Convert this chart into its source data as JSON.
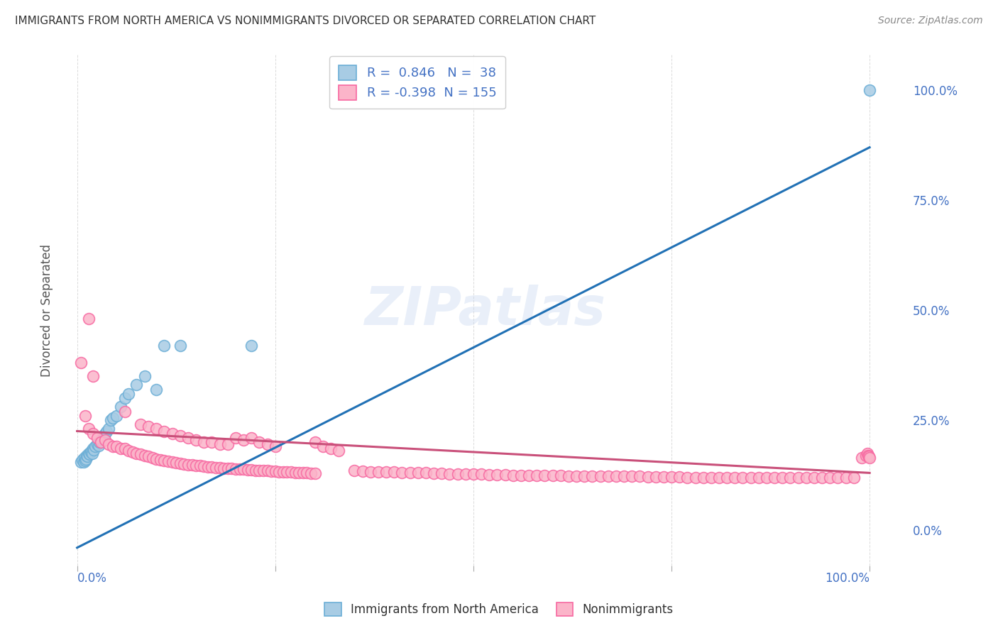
{
  "title": "IMMIGRANTS FROM NORTH AMERICA VS NONIMMIGRANTS DIVORCED OR SEPARATED CORRELATION CHART",
  "source": "Source: ZipAtlas.com",
  "ylabel": "Divorced or Separated",
  "blue_R": 0.846,
  "blue_N": 38,
  "pink_R": -0.398,
  "pink_N": 155,
  "blue_color": "#6baed6",
  "blue_fill": "#a8cce4",
  "pink_color": "#f768a1",
  "pink_fill": "#fbb4c9",
  "blue_line_color": "#2171b5",
  "pink_line_color": "#c9507a",
  "watermark": "ZIPatlas",
  "legend_label_blue": "Immigrants from North America",
  "legend_label_pink": "Nonimmigrants",
  "background_color": "#ffffff",
  "grid_color": "#cccccc",
  "title_color": "#333333",
  "axis_label_color": "#4472c4",
  "blue_scatter_x": [
    0.005,
    0.007,
    0.008,
    0.009,
    0.01,
    0.011,
    0.012,
    0.013,
    0.015,
    0.016,
    0.017,
    0.018,
    0.019,
    0.02,
    0.021,
    0.023,
    0.025,
    0.027,
    0.028,
    0.03,
    0.032,
    0.033,
    0.035,
    0.037,
    0.04,
    0.042,
    0.045,
    0.05,
    0.055,
    0.06,
    0.065,
    0.075,
    0.085,
    0.1,
    0.11,
    0.13,
    0.22,
    1.0
  ],
  "blue_scatter_y": [
    0.155,
    0.16,
    0.155,
    0.165,
    0.158,
    0.162,
    0.17,
    0.168,
    0.175,
    0.172,
    0.178,
    0.18,
    0.175,
    0.185,
    0.182,
    0.19,
    0.195,
    0.192,
    0.2,
    0.205,
    0.21,
    0.215,
    0.22,
    0.225,
    0.23,
    0.25,
    0.255,
    0.26,
    0.28,
    0.3,
    0.31,
    0.33,
    0.35,
    0.32,
    0.42,
    0.42,
    0.42,
    1.0
  ],
  "pink_scatter_x": [
    0.005,
    0.01,
    0.015,
    0.02,
    0.025,
    0.03,
    0.035,
    0.04,
    0.045,
    0.05,
    0.055,
    0.06,
    0.065,
    0.07,
    0.075,
    0.08,
    0.085,
    0.09,
    0.095,
    0.1,
    0.105,
    0.11,
    0.115,
    0.12,
    0.125,
    0.13,
    0.135,
    0.14,
    0.145,
    0.15,
    0.155,
    0.16,
    0.165,
    0.17,
    0.175,
    0.18,
    0.185,
    0.19,
    0.195,
    0.2,
    0.205,
    0.21,
    0.215,
    0.22,
    0.225,
    0.23,
    0.235,
    0.24,
    0.245,
    0.25,
    0.255,
    0.26,
    0.265,
    0.27,
    0.275,
    0.28,
    0.285,
    0.29,
    0.295,
    0.3,
    0.35,
    0.36,
    0.37,
    0.38,
    0.39,
    0.4,
    0.41,
    0.42,
    0.43,
    0.44,
    0.45,
    0.46,
    0.47,
    0.48,
    0.49,
    0.5,
    0.51,
    0.52,
    0.53,
    0.54,
    0.55,
    0.56,
    0.57,
    0.58,
    0.59,
    0.6,
    0.61,
    0.62,
    0.63,
    0.64,
    0.65,
    0.66,
    0.67,
    0.68,
    0.69,
    0.7,
    0.71,
    0.72,
    0.73,
    0.74,
    0.75,
    0.76,
    0.77,
    0.78,
    0.79,
    0.8,
    0.81,
    0.82,
    0.83,
    0.84,
    0.85,
    0.86,
    0.87,
    0.88,
    0.89,
    0.9,
    0.91,
    0.92,
    0.93,
    0.94,
    0.95,
    0.96,
    0.97,
    0.98,
    0.99,
    0.995,
    0.997,
    0.998,
    0.999,
    1.0,
    0.015,
    0.02,
    0.06,
    0.08,
    0.09,
    0.1,
    0.11,
    0.12,
    0.13,
    0.14,
    0.15,
    0.16,
    0.17,
    0.18,
    0.19,
    0.2,
    0.21,
    0.22,
    0.23,
    0.24,
    0.25,
    0.3,
    0.31,
    0.32,
    0.33
  ],
  "pink_scatter_y": [
    0.38,
    0.26,
    0.23,
    0.22,
    0.21,
    0.2,
    0.205,
    0.195,
    0.19,
    0.19,
    0.185,
    0.185,
    0.18,
    0.178,
    0.175,
    0.172,
    0.17,
    0.168,
    0.165,
    0.162,
    0.16,
    0.158,
    0.157,
    0.155,
    0.153,
    0.152,
    0.15,
    0.149,
    0.148,
    0.147,
    0.146,
    0.145,
    0.144,
    0.143,
    0.142,
    0.142,
    0.141,
    0.14,
    0.14,
    0.139,
    0.138,
    0.138,
    0.137,
    0.137,
    0.136,
    0.136,
    0.135,
    0.135,
    0.134,
    0.134,
    0.133,
    0.133,
    0.132,
    0.132,
    0.131,
    0.131,
    0.13,
    0.13,
    0.129,
    0.129,
    0.135,
    0.134,
    0.133,
    0.133,
    0.132,
    0.132,
    0.131,
    0.131,
    0.13,
    0.13,
    0.129,
    0.129,
    0.128,
    0.128,
    0.127,
    0.127,
    0.127,
    0.126,
    0.126,
    0.126,
    0.125,
    0.125,
    0.125,
    0.124,
    0.124,
    0.124,
    0.124,
    0.123,
    0.123,
    0.123,
    0.123,
    0.122,
    0.122,
    0.122,
    0.122,
    0.122,
    0.122,
    0.121,
    0.121,
    0.121,
    0.121,
    0.121,
    0.12,
    0.12,
    0.12,
    0.12,
    0.12,
    0.12,
    0.12,
    0.12,
    0.12,
    0.12,
    0.12,
    0.12,
    0.12,
    0.12,
    0.12,
    0.12,
    0.12,
    0.12,
    0.12,
    0.12,
    0.12,
    0.12,
    0.165,
    0.17,
    0.175,
    0.17,
    0.168,
    0.165,
    0.48,
    0.35,
    0.27,
    0.24,
    0.235,
    0.23,
    0.225,
    0.22,
    0.215,
    0.21,
    0.205,
    0.2,
    0.2,
    0.195,
    0.195,
    0.21,
    0.205,
    0.21,
    0.2,
    0.195,
    0.19,
    0.2,
    0.19,
    0.185,
    0.18
  ],
  "blue_trendline_x": [
    0.0,
    1.0
  ],
  "blue_trendline_y": [
    -0.04,
    0.87
  ],
  "pink_trendline_x": [
    0.0,
    1.0
  ],
  "pink_trendline_y": [
    0.225,
    0.13
  ],
  "xlim": [
    -0.02,
    1.05
  ],
  "ylim": [
    -0.08,
    1.08
  ]
}
